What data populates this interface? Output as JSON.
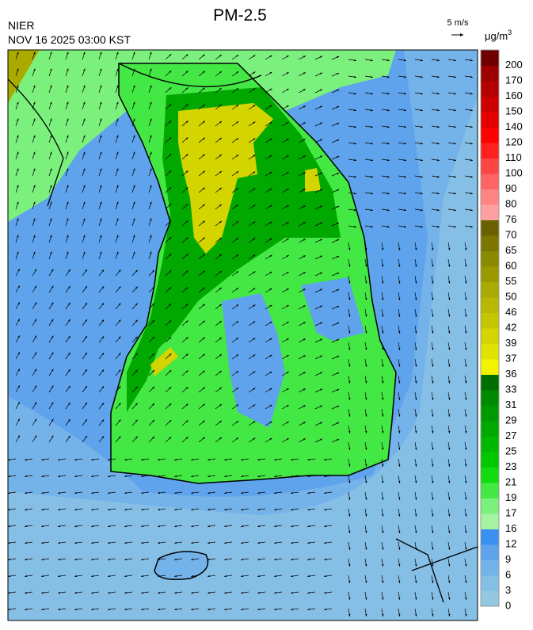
{
  "header": {
    "title": "PM-2.5",
    "agency": "NIER",
    "datetime": "NOV 16 2025 03:00 KST",
    "wind_scale": "5 m/s"
  },
  "legend": {
    "unit": "μg/m",
    "unit_superscript": "3",
    "entries": [
      {
        "label": 0,
        "color": "#93c8e2"
      },
      {
        "label": 3,
        "color": "#86bfe6"
      },
      {
        "label": 6,
        "color": "#74b2ea"
      },
      {
        "label": 9,
        "color": "#5ea3ec"
      },
      {
        "label": 12,
        "color": "#3a90f0"
      },
      {
        "label": 16,
        "color": "#a4f4a4"
      },
      {
        "label": 17,
        "color": "#7cf07c"
      },
      {
        "label": 19,
        "color": "#44e844"
      },
      {
        "label": 21,
        "color": "#10dc10"
      },
      {
        "label": 23,
        "color": "#00c800"
      },
      {
        "label": 25,
        "color": "#00b800"
      },
      {
        "label": 27,
        "color": "#00a800"
      },
      {
        "label": 29,
        "color": "#009a00"
      },
      {
        "label": 31,
        "color": "#008a00"
      },
      {
        "label": 33,
        "color": "#006e00"
      },
      {
        "label": 36,
        "color": "#f4f400"
      },
      {
        "label": 37,
        "color": "#e2e200"
      },
      {
        "label": 39,
        "color": "#d4d400"
      },
      {
        "label": 42,
        "color": "#c6c600"
      },
      {
        "label": 46,
        "color": "#b8b800"
      },
      {
        "label": 50,
        "color": "#aaaa00"
      },
      {
        "label": 55,
        "color": "#9a9a00"
      },
      {
        "label": 60,
        "color": "#8a8a00"
      },
      {
        "label": 65,
        "color": "#7a7600"
      },
      {
        "label": 70,
        "color": "#6a6000"
      },
      {
        "label": 76,
        "color": "#ffa0a0"
      },
      {
        "label": 80,
        "color": "#ff8484"
      },
      {
        "label": 90,
        "color": "#ff6464"
      },
      {
        "label": 100,
        "color": "#ff4444"
      },
      {
        "label": 110,
        "color": "#ff2020"
      },
      {
        "label": 120,
        "color": "#ff0000"
      },
      {
        "label": 140,
        "color": "#e40000"
      },
      {
        "label": 150,
        "color": "#cc0000"
      },
      {
        "label": 160,
        "color": "#b40000"
      },
      {
        "label": 170,
        "color": "#9c0000"
      },
      {
        "label": 200,
        "color": "#6e0000"
      }
    ]
  }
}
